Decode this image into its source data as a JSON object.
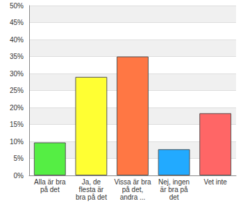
{
  "chart_data": {
    "type": "bar",
    "categories": [
      "Alla är bra\npå det",
      "Ja, de\nflesta är\nbra på det",
      "Vissa är bra\npå det,\nandra ...",
      "Nej, ingen\när bra på\ndet",
      "Vet inte"
    ],
    "values": [
      9.7,
      29,
      35,
      7.7,
      18.3
    ],
    "colors": [
      "#55ee44",
      "#ffff33",
      "#ff7744",
      "#22aaff",
      "#ff6666"
    ],
    "ylim": [
      0,
      50
    ],
    "yticks": [
      {
        "value": 0,
        "label": "0%"
      },
      {
        "value": 5,
        "label": "5%"
      },
      {
        "value": 10,
        "label": "10%"
      },
      {
        "value": 15,
        "label": "15%"
      },
      {
        "value": 20,
        "label": "20%"
      },
      {
        "value": 25,
        "label": "25%"
      },
      {
        "value": 30,
        "label": "30%"
      },
      {
        "value": 35,
        "label": "35%"
      },
      {
        "value": 40,
        "label": "40%"
      },
      {
        "value": 45,
        "label": "45%"
      },
      {
        "value": 50,
        "label": "50%"
      }
    ],
    "grid": true
  }
}
